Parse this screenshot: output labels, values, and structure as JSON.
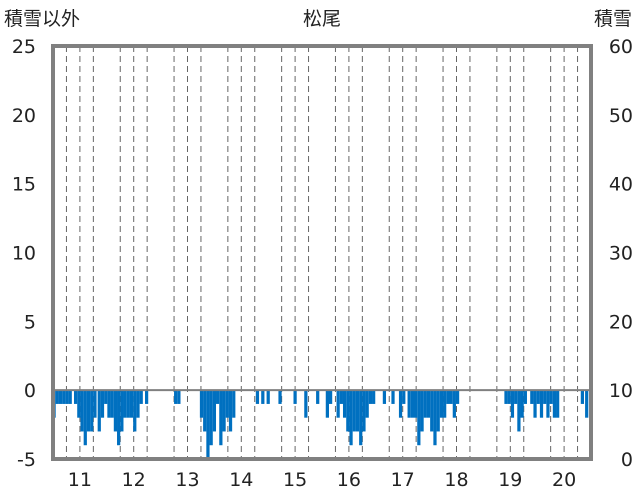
{
  "chart_data": {
    "type": "bar",
    "title": "松尾",
    "ylabel_left": "積雪以外",
    "ylabel_right": "積雪",
    "ylim_left": [
      -5,
      25
    ],
    "ylim_right": [
      0,
      60
    ],
    "yticks_left": [
      "25",
      "20",
      "15",
      "10",
      "5",
      "0",
      "-5"
    ],
    "yticks_right": [
      "60",
      "50",
      "40",
      "30",
      "20",
      "10",
      "0"
    ],
    "x_day_labels": [
      "11",
      "12",
      "13",
      "14",
      "15",
      "16",
      "17",
      "18",
      "19",
      "20"
    ],
    "x_range_days": [
      10.5,
      20.5
    ],
    "grid": "dashed-vertical-at-day-start",
    "bar_color": "#0070c0",
    "bars": [
      {
        "x": 10.52,
        "v": -2.0
      },
      {
        "x": 10.58,
        "v": -1.0
      },
      {
        "x": 10.64,
        "v": -1.0
      },
      {
        "x": 10.7,
        "v": -1.0
      },
      {
        "x": 10.76,
        "v": -1.0
      },
      {
        "x": 10.82,
        "v": -1.0
      },
      {
        "x": 10.92,
        "v": -1.0
      },
      {
        "x": 10.98,
        "v": -2.0
      },
      {
        "x": 11.04,
        "v": -3.0
      },
      {
        "x": 11.1,
        "v": -4.0
      },
      {
        "x": 11.16,
        "v": -3.0
      },
      {
        "x": 11.22,
        "v": -3.0
      },
      {
        "x": 11.28,
        "v": -2.0
      },
      {
        "x": 11.36,
        "v": -3.0
      },
      {
        "x": 11.42,
        "v": -2.0
      },
      {
        "x": 11.48,
        "v": -1.0
      },
      {
        "x": 11.54,
        "v": -2.0
      },
      {
        "x": 11.6,
        "v": -2.0
      },
      {
        "x": 11.66,
        "v": -3.0
      },
      {
        "x": 11.72,
        "v": -4.0
      },
      {
        "x": 11.78,
        "v": -3.0
      },
      {
        "x": 11.84,
        "v": -2.0
      },
      {
        "x": 11.9,
        "v": -2.0
      },
      {
        "x": 11.96,
        "v": -2.0
      },
      {
        "x": 12.02,
        "v": -3.0
      },
      {
        "x": 12.08,
        "v": -2.0
      },
      {
        "x": 12.14,
        "v": -1.0
      },
      {
        "x": 12.24,
        "v": -1.0
      },
      {
        "x": 12.78,
        "v": -1.0
      },
      {
        "x": 12.84,
        "v": -1.0
      },
      {
        "x": 13.26,
        "v": -2.0
      },
      {
        "x": 13.32,
        "v": -3.0
      },
      {
        "x": 13.38,
        "v": -5.0
      },
      {
        "x": 13.44,
        "v": -4.0
      },
      {
        "x": 13.5,
        "v": -3.0
      },
      {
        "x": 13.56,
        "v": -1.0
      },
      {
        "x": 13.62,
        "v": -4.0
      },
      {
        "x": 13.68,
        "v": -3.0
      },
      {
        "x": 13.74,
        "v": -2.0
      },
      {
        "x": 13.8,
        "v": -3.0
      },
      {
        "x": 13.86,
        "v": -2.0
      },
      {
        "x": 14.3,
        "v": -1.0
      },
      {
        "x": 14.4,
        "v": -1.0
      },
      {
        "x": 14.5,
        "v": -1.0
      },
      {
        "x": 14.72,
        "v": -1.0
      },
      {
        "x": 15.0,
        "v": -1.0
      },
      {
        "x": 15.2,
        "v": -2.0
      },
      {
        "x": 15.42,
        "v": -1.0
      },
      {
        "x": 15.6,
        "v": -2.0
      },
      {
        "x": 15.66,
        "v": -1.0
      },
      {
        "x": 15.8,
        "v": -2.0
      },
      {
        "x": 15.86,
        "v": -1.0
      },
      {
        "x": 15.92,
        "v": -2.0
      },
      {
        "x": 15.98,
        "v": -3.0
      },
      {
        "x": 16.04,
        "v": -4.0
      },
      {
        "x": 16.1,
        "v": -3.0
      },
      {
        "x": 16.16,
        "v": -3.0
      },
      {
        "x": 16.22,
        "v": -4.0
      },
      {
        "x": 16.28,
        "v": -3.0
      },
      {
        "x": 16.34,
        "v": -2.0
      },
      {
        "x": 16.4,
        "v": -1.0
      },
      {
        "x": 16.46,
        "v": -1.0
      },
      {
        "x": 16.66,
        "v": -1.0
      },
      {
        "x": 16.82,
        "v": -1.0
      },
      {
        "x": 16.96,
        "v": -2.0
      },
      {
        "x": 17.02,
        "v": -1.0
      },
      {
        "x": 17.12,
        "v": -2.0
      },
      {
        "x": 17.18,
        "v": -2.0
      },
      {
        "x": 17.24,
        "v": -2.0
      },
      {
        "x": 17.3,
        "v": -4.0
      },
      {
        "x": 17.36,
        "v": -3.0
      },
      {
        "x": 17.42,
        "v": -2.0
      },
      {
        "x": 17.48,
        "v": -2.0
      },
      {
        "x": 17.54,
        "v": -3.0
      },
      {
        "x": 17.6,
        "v": -4.0
      },
      {
        "x": 17.66,
        "v": -3.0
      },
      {
        "x": 17.72,
        "v": -2.0
      },
      {
        "x": 17.78,
        "v": -2.0
      },
      {
        "x": 17.84,
        "v": -1.0
      },
      {
        "x": 17.9,
        "v": -1.0
      },
      {
        "x": 17.96,
        "v": -2.0
      },
      {
        "x": 18.02,
        "v": -1.0
      },
      {
        "x": 18.92,
        "v": -1.0
      },
      {
        "x": 18.98,
        "v": -1.0
      },
      {
        "x": 19.04,
        "v": -2.0
      },
      {
        "x": 19.1,
        "v": -1.0
      },
      {
        "x": 19.16,
        "v": -3.0
      },
      {
        "x": 19.22,
        "v": -2.0
      },
      {
        "x": 19.28,
        "v": -1.0
      },
      {
        "x": 19.4,
        "v": -1.0
      },
      {
        "x": 19.46,
        "v": -2.0
      },
      {
        "x": 19.52,
        "v": -1.0
      },
      {
        "x": 19.58,
        "v": -2.0
      },
      {
        "x": 19.64,
        "v": -1.0
      },
      {
        "x": 19.7,
        "v": -2.0
      },
      {
        "x": 19.76,
        "v": -1.0
      },
      {
        "x": 19.82,
        "v": -2.0
      },
      {
        "x": 19.88,
        "v": -2.0
      },
      {
        "x": 20.34,
        "v": -1.0
      },
      {
        "x": 20.42,
        "v": -2.0
      }
    ]
  }
}
